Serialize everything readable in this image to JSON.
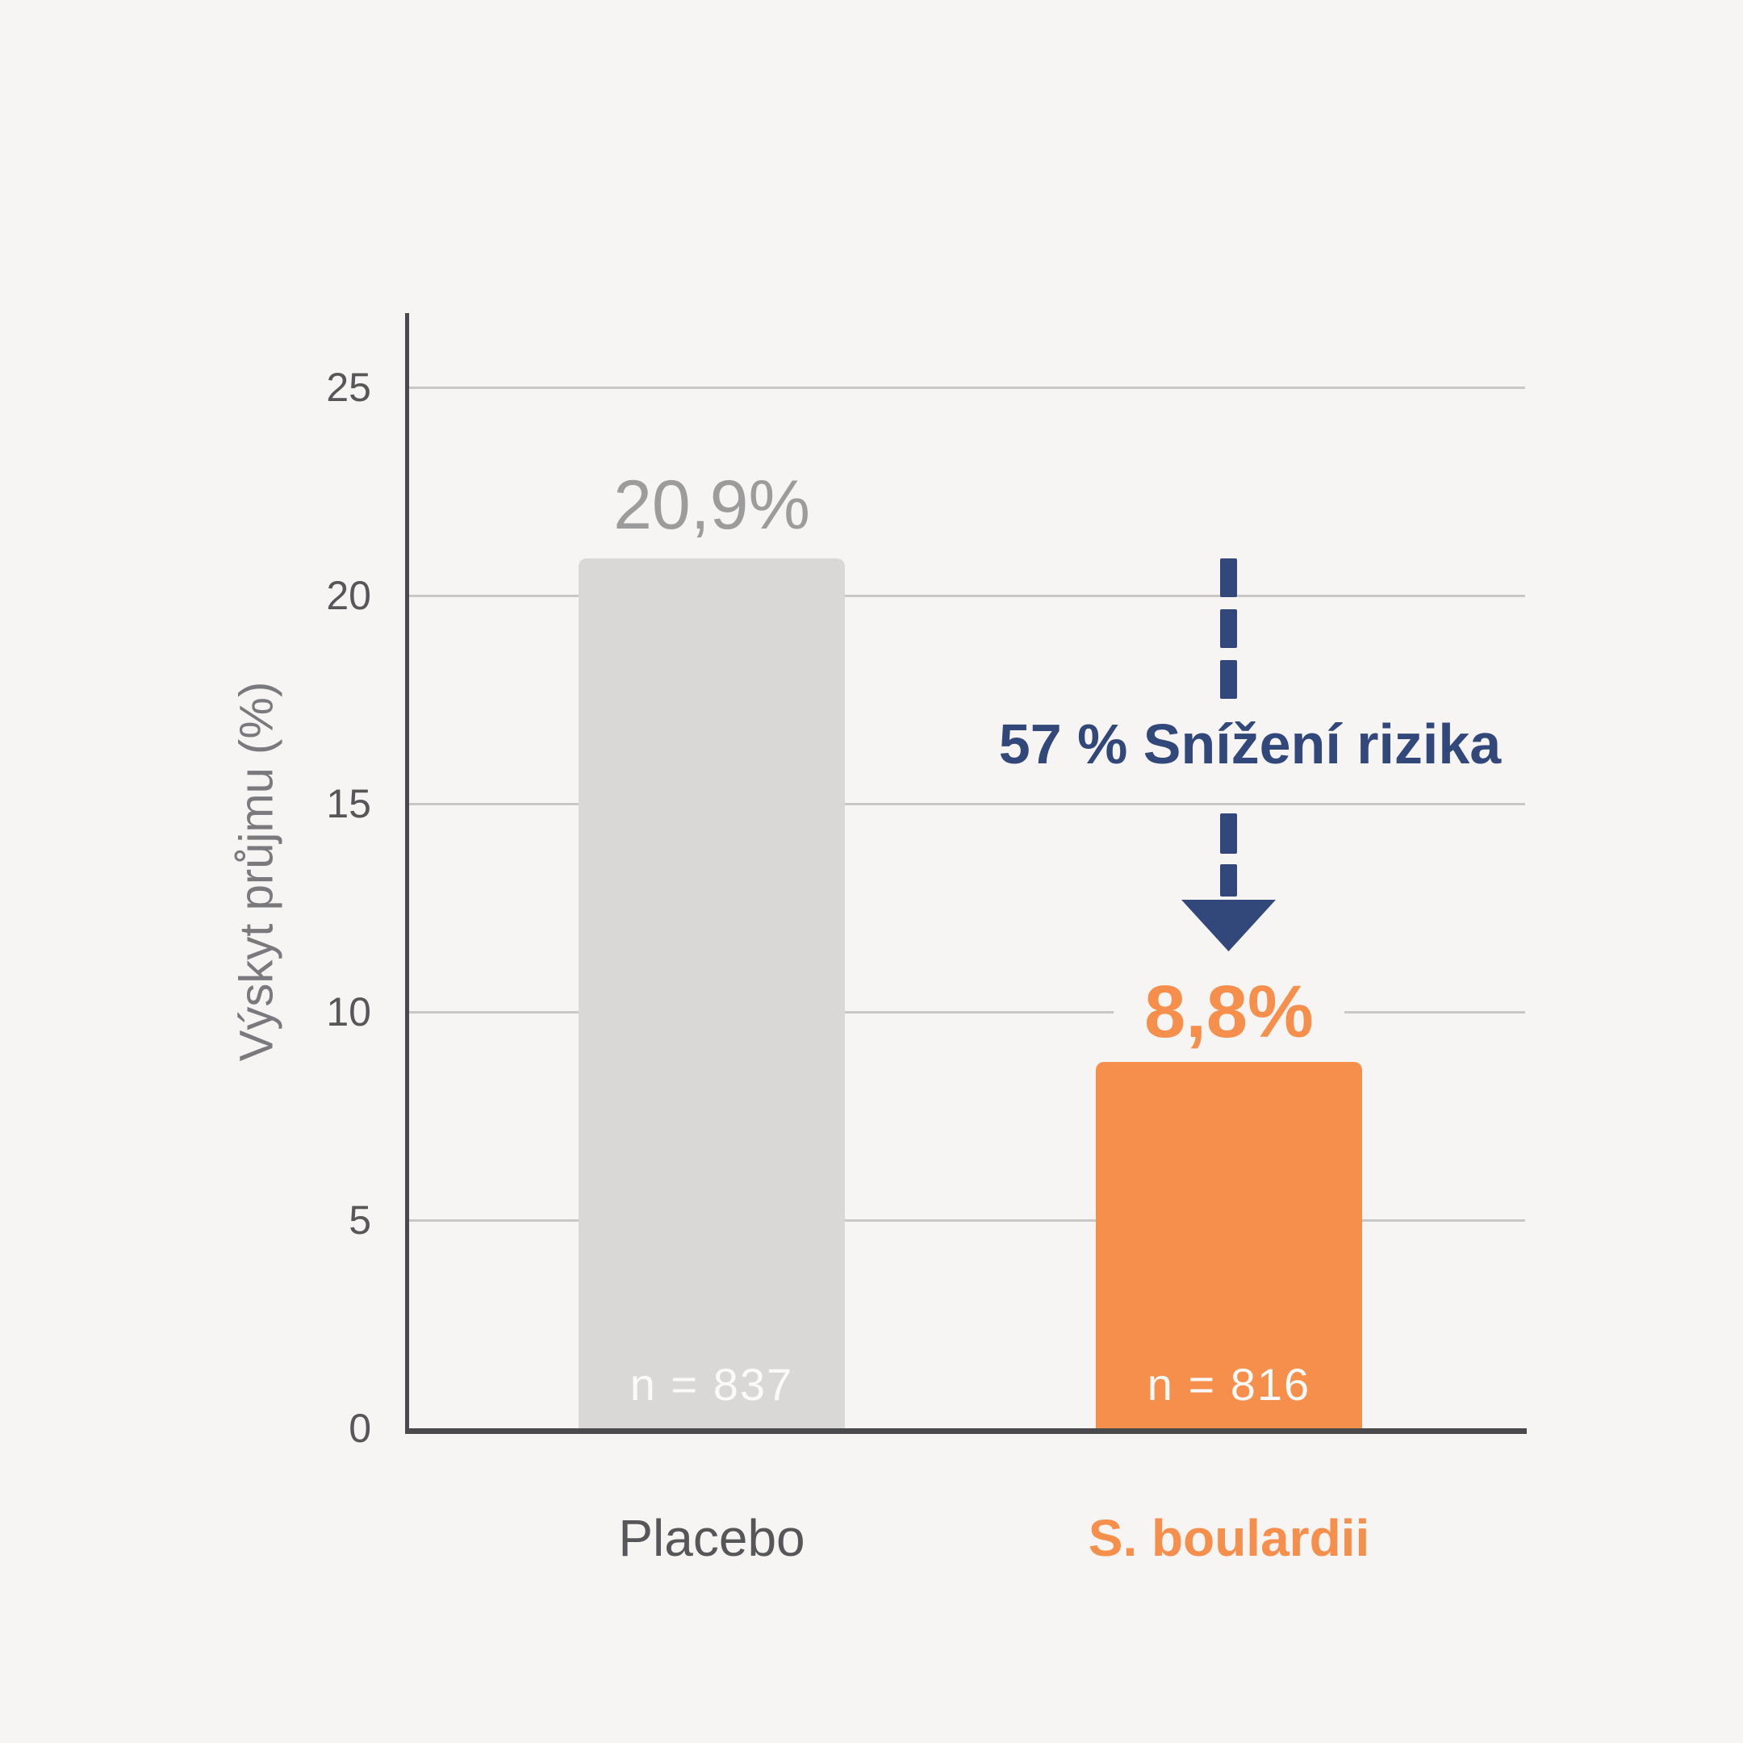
{
  "background": "#f6f5f3",
  "chart_data": {
    "type": "bar",
    "title": "",
    "xlabel": "",
    "ylabel": "Výskyt průjmu (%)",
    "ylim": [
      0,
      25
    ],
    "yticks": [
      0,
      5,
      10,
      15,
      20,
      25
    ],
    "grid": "horizontal",
    "legend": "none",
    "categories": [
      "Placebo",
      "S. boulardii"
    ],
    "series": [
      {
        "name": "Výskyt průjmu (%)",
        "values": [
          20.9,
          8.8
        ],
        "value_labels": [
          "20,9%",
          "8,8%"
        ],
        "n_labels": [
          "n = 837",
          "n = 816"
        ],
        "bar_colors": [
          "#d9d8d6",
          "#f78f4c"
        ]
      }
    ],
    "annotation": {
      "text": "57 % Snížení rizika",
      "shape": "dashed-down-arrow",
      "color": "#33487a"
    }
  },
  "colors": {
    "background": "#f6f5f3",
    "grid": "#c9c8c6",
    "axis": "#4a4a4c",
    "tick_text": "#57575a",
    "axis_title_text": "#7a797d",
    "value_label_gray": "#9c9c9c",
    "value_label_orange": "#f78f4c",
    "bar_gray": "#d9d8d6",
    "bar_orange": "#f78f4c",
    "navy": "#33487a",
    "category_gray": "#57575a",
    "category_orange": "#f78f4c",
    "n_label_text": "#fbfaf8"
  }
}
